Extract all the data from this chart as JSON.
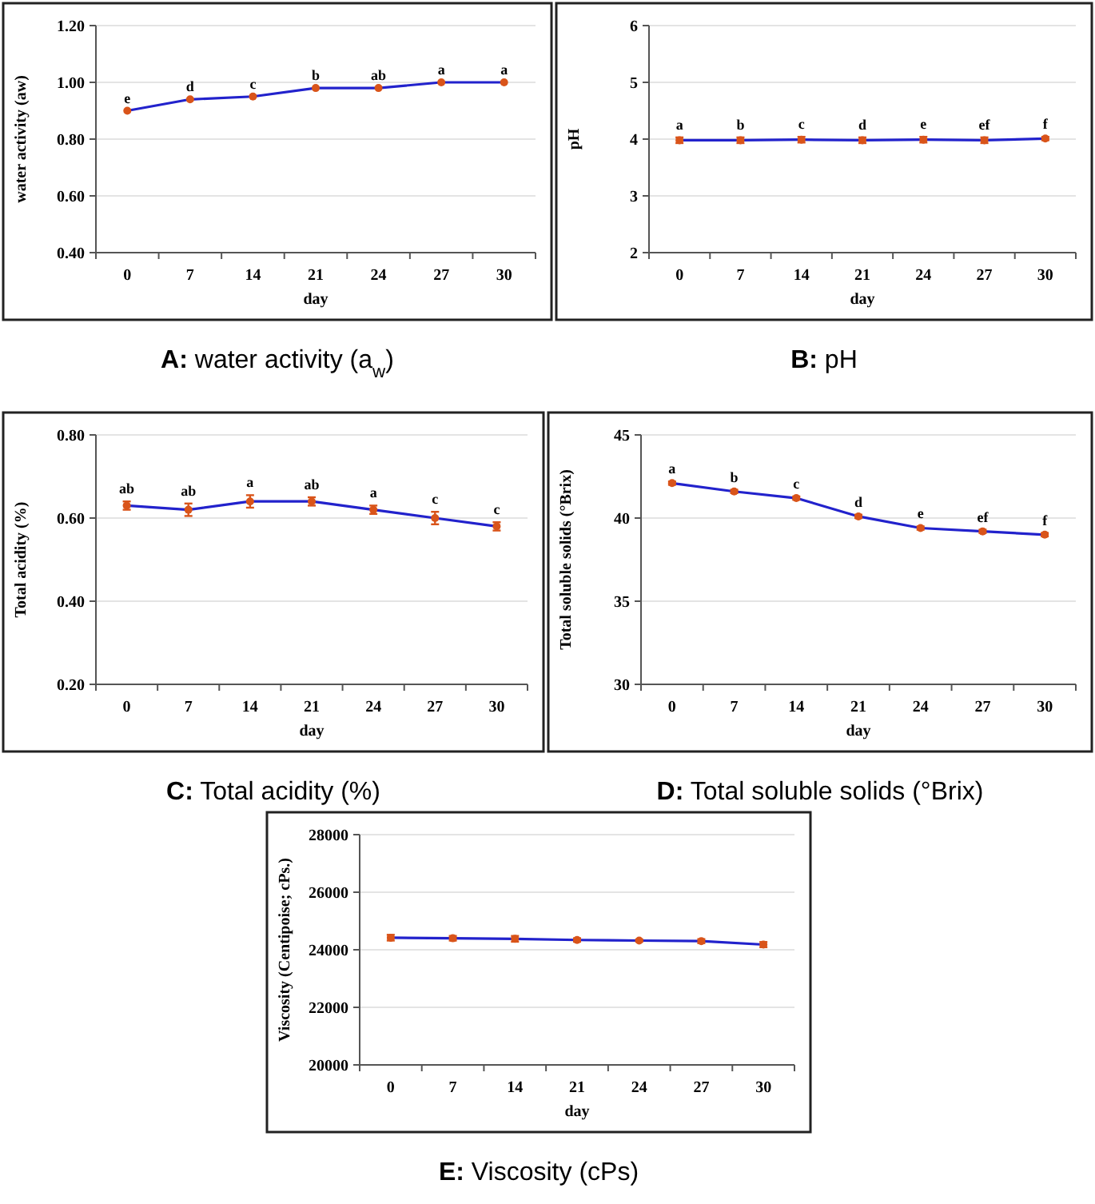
{
  "chart_data": [
    {
      "type": "line",
      "title": "A: water activity (a$_{w}$)",
      "xlabel": "day",
      "ylabel": "water activity (aw)",
      "categories": [
        "0",
        "7",
        "14",
        "21",
        "24",
        "27",
        "30"
      ],
      "series": [
        {
          "color": "#2222cc",
          "colors": [
            "#d9541a",
            "#d9541a",
            "#d9541a",
            "#d9541a",
            "#d9541a",
            "#d9541a",
            "#d9541a"
          ],
          "values": [
            0.9,
            0.94,
            0.95,
            0.98,
            0.98,
            1.0,
            1.0
          ]
        }
      ],
      "ylim": [
        0.4,
        1.2
      ],
      "yticks": [
        {
          "value": 0.4,
          "label": "0.40"
        },
        {
          "value": 0.6,
          "label": "0.60"
        },
        {
          "value": 0.8,
          "label": "0.80"
        },
        {
          "value": 1.0,
          "label": "1.00"
        },
        {
          "value": 1.2,
          "label": "1.20"
        }
      ],
      "grid": "y",
      "marker": "circle",
      "annotations": [
        {
          "text": "e",
          "x": "0",
          "y": 0.9
        },
        {
          "text": "d",
          "x": "7",
          "y": 0.94
        },
        {
          "text": "c",
          "x": "14",
          "y": 0.95
        },
        {
          "text": "b",
          "x": "21",
          "y": 0.98
        },
        {
          "text": "ab",
          "x": "24",
          "y": 0.98
        },
        {
          "text": "a",
          "x": "27",
          "y": 1.0
        },
        {
          "text": "a",
          "x": "30",
          "y": 1.0
        }
      ]
    },
    {
      "type": "line",
      "title": "B: pH",
      "xlabel": "day",
      "ylabel": "pH",
      "categories": [
        "0",
        "7",
        "14",
        "21",
        "24",
        "27",
        "30"
      ],
      "series": [
        {
          "color": "#2222cc",
          "colors": [
            "#d9541a",
            "#d9541a",
            "#d9541a",
            "#d9541a",
            "#d9541a",
            "#d9541a",
            "#d9541a"
          ],
          "values": [
            3.98,
            3.98,
            3.99,
            3.98,
            3.99,
            3.98,
            4.01
          ],
          "errors": [
            0.05,
            0.05,
            0.05,
            0.05,
            0.05,
            0.05,
            0.03
          ]
        }
      ],
      "ylim": [
        2,
        6
      ],
      "yticks": [
        2,
        3,
        4,
        5,
        6
      ],
      "grid": "y",
      "marker": "circle",
      "annotations": [
        {
          "text": "a",
          "x": "0",
          "y": 3.98
        },
        {
          "text": "b",
          "x": "7",
          "y": 3.98
        },
        {
          "text": "c",
          "x": "14",
          "y": 3.99
        },
        {
          "text": "d",
          "x": "21",
          "y": 3.98
        },
        {
          "text": "e",
          "x": "24",
          "y": 3.99
        },
        {
          "text": "ef",
          "x": "27",
          "y": 3.98
        },
        {
          "text": "f",
          "x": "30",
          "y": 4.01
        }
      ]
    },
    {
      "type": "line",
      "title": "C: Total acidity (%)",
      "xlabel": "day",
      "ylabel": "Total acidity (%)",
      "categories": [
        "0",
        "7",
        "14",
        "21",
        "24",
        "27",
        "30"
      ],
      "series": [
        {
          "color": "#2222cc",
          "colors": [
            "#d9541a",
            "#d9541a",
            "#d9541a",
            "#d9541a",
            "#d9541a",
            "#d9541a",
            "#d9541a"
          ],
          "values": [
            0.63,
            0.62,
            0.64,
            0.64,
            0.62,
            0.6,
            0.58
          ],
          "errors": [
            0.01,
            0.015,
            0.015,
            0.01,
            0.01,
            0.015,
            0.01
          ]
        }
      ],
      "ylim": [
        0.2,
        0.8
      ],
      "yticks": [
        {
          "value": 0.2,
          "label": "0.20"
        },
        {
          "value": 0.4,
          "label": "0.40"
        },
        {
          "value": 0.6,
          "label": "0.60"
        },
        {
          "value": 0.8,
          "label": "0.80"
        }
      ],
      "grid": "y",
      "marker": "circle",
      "annotations": [
        {
          "text": "ab",
          "x": "0",
          "y": 0.63
        },
        {
          "text": "ab",
          "x": "7",
          "y": 0.62
        },
        {
          "text": "a",
          "x": "14",
          "y": 0.64
        },
        {
          "text": "ab",
          "x": "21",
          "y": 0.64
        },
        {
          "text": "a",
          "x": "24",
          "y": 0.62
        },
        {
          "text": "c",
          "x": "27",
          "y": 0.6
        },
        {
          "text": "c",
          "x": "30",
          "y": 0.58
        }
      ]
    },
    {
      "type": "line",
      "title": "D: Total soluble solids (°Brix)",
      "xlabel": "day",
      "ylabel": "Total soluble solids (°Brix)",
      "categories": [
        "0",
        "7",
        "14",
        "21",
        "24",
        "27",
        "30"
      ],
      "series": [
        {
          "color": "#2222cc",
          "colors": [
            "#d9541a",
            "#d9541a",
            "#d9541a",
            "#d9541a",
            "#d9541a",
            "#d9541a",
            "#d9541a"
          ],
          "values": [
            42.1,
            41.6,
            41.2,
            40.1,
            39.4,
            39.2,
            39.0
          ],
          "errors": [
            0.1,
            0.1,
            0.1,
            0.1,
            0.1,
            0.1,
            0.1
          ]
        }
      ],
      "ylim": [
        30,
        45
      ],
      "yticks": [
        30,
        35,
        40,
        45
      ],
      "grid": "y",
      "marker": "circle",
      "annotations": [
        {
          "text": "a",
          "x": "0",
          "y": 42.1
        },
        {
          "text": "b",
          "x": "7",
          "y": 41.6
        },
        {
          "text": "c",
          "x": "14",
          "y": 41.2
        },
        {
          "text": "d",
          "x": "21",
          "y": 40.1
        },
        {
          "text": "e",
          "x": "24",
          "y": 39.4
        },
        {
          "text": "ef",
          "x": "27",
          "y": 39.2
        },
        {
          "text": "f",
          "x": "30",
          "y": 39.0
        }
      ]
    },
    {
      "type": "line",
      "title": "E: Viscosity (cPs)",
      "xlabel": "day",
      "ylabel": "Viscosity (Centipoise; cPs.)",
      "categories": [
        "0",
        "7",
        "14",
        "21",
        "24",
        "27",
        "30"
      ],
      "series": [
        {
          "color": "#2222cc",
          "colors": [
            "#d9541a",
            "#d9541a",
            "#d9541a",
            "#d9541a",
            "#d9541a",
            "#d9541a",
            "#d9541a"
          ],
          "values": [
            24420,
            24400,
            24380,
            24340,
            24320,
            24300,
            24180
          ],
          "errors": [
            100,
            80,
            100,
            60,
            40,
            70,
            90
          ]
        }
      ],
      "ylim": [
        20000,
        28000
      ],
      "yticks": [
        20000,
        22000,
        24000,
        26000,
        28000
      ],
      "grid": "y",
      "marker": "circle"
    }
  ]
}
